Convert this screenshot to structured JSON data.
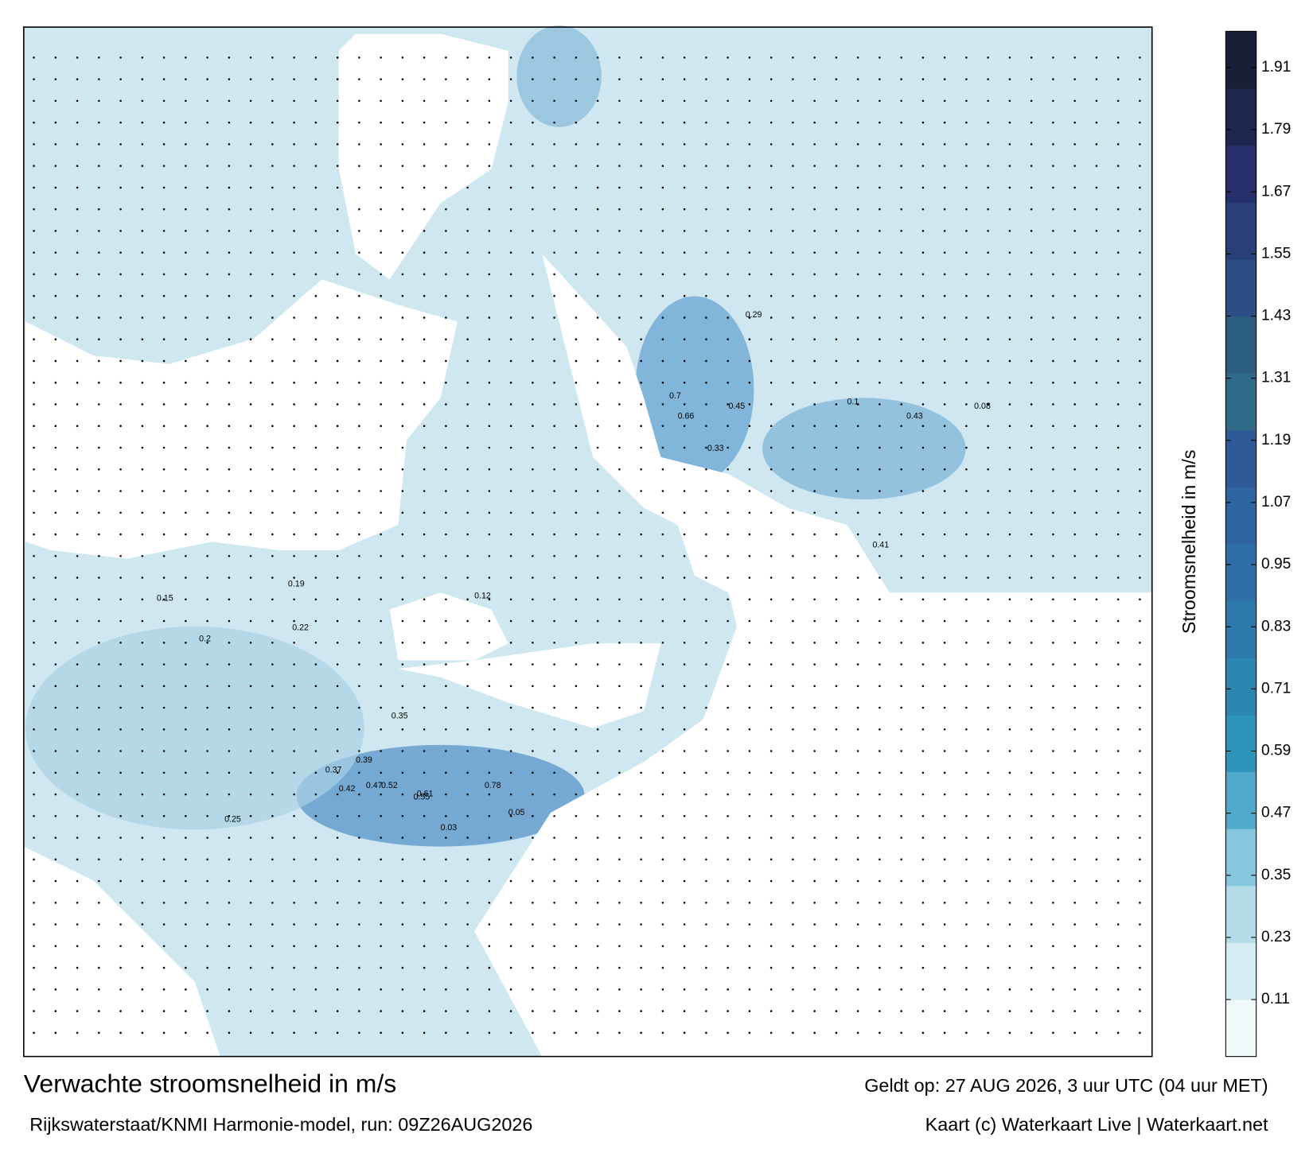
{
  "chart_data": {
    "type": "map",
    "title": "Verwachte stroomsnelheid in m/s",
    "subtitle": "Rijkswaterstaat/KNMI Harmonie-model, run: 09Z26AUG2026",
    "valid_time": "Geldt op: 27 AUG 2026, 3 uur UTC (04 uur MET)",
    "credit": "Kaart (c) Waterkaart Live | Waterkaart.net",
    "colorbar_label": "Stroomsnelheid in m/s",
    "ylim": [
      0,
      1.98
    ],
    "yticks": [
      0.11,
      0.23,
      0.35,
      0.47,
      0.59,
      0.71,
      0.83,
      0.95,
      1.07,
      1.19,
      1.31,
      1.43,
      1.55,
      1.67,
      1.79,
      1.91
    ],
    "colors": [
      "#f2f9fb",
      "#d6ecf3",
      "#b3dcea",
      "#86c6de",
      "#4ea9cb",
      "#2d94bb",
      "#2c86b2",
      "#2b7aab",
      "#2d6fa6",
      "#2e64a0",
      "#2f5a98",
      "#2f6a88",
      "#2b5e80",
      "#2a4e85",
      "#293f78",
      "#25306a",
      "#1e2650",
      "#1a1f38"
    ],
    "map_labels": [
      0.66,
      0.7,
      0.78,
      0.61,
      0.55,
      0.52,
      0.47,
      0.42,
      0.39,
      0.37,
      0.35,
      0.45,
      0.33,
      0.25,
      0.22,
      0.2,
      0.19,
      0.15,
      0.12,
      0.1,
      0.08,
      0.05,
      0.03,
      0.43,
      0.41,
      0.29
    ]
  }
}
